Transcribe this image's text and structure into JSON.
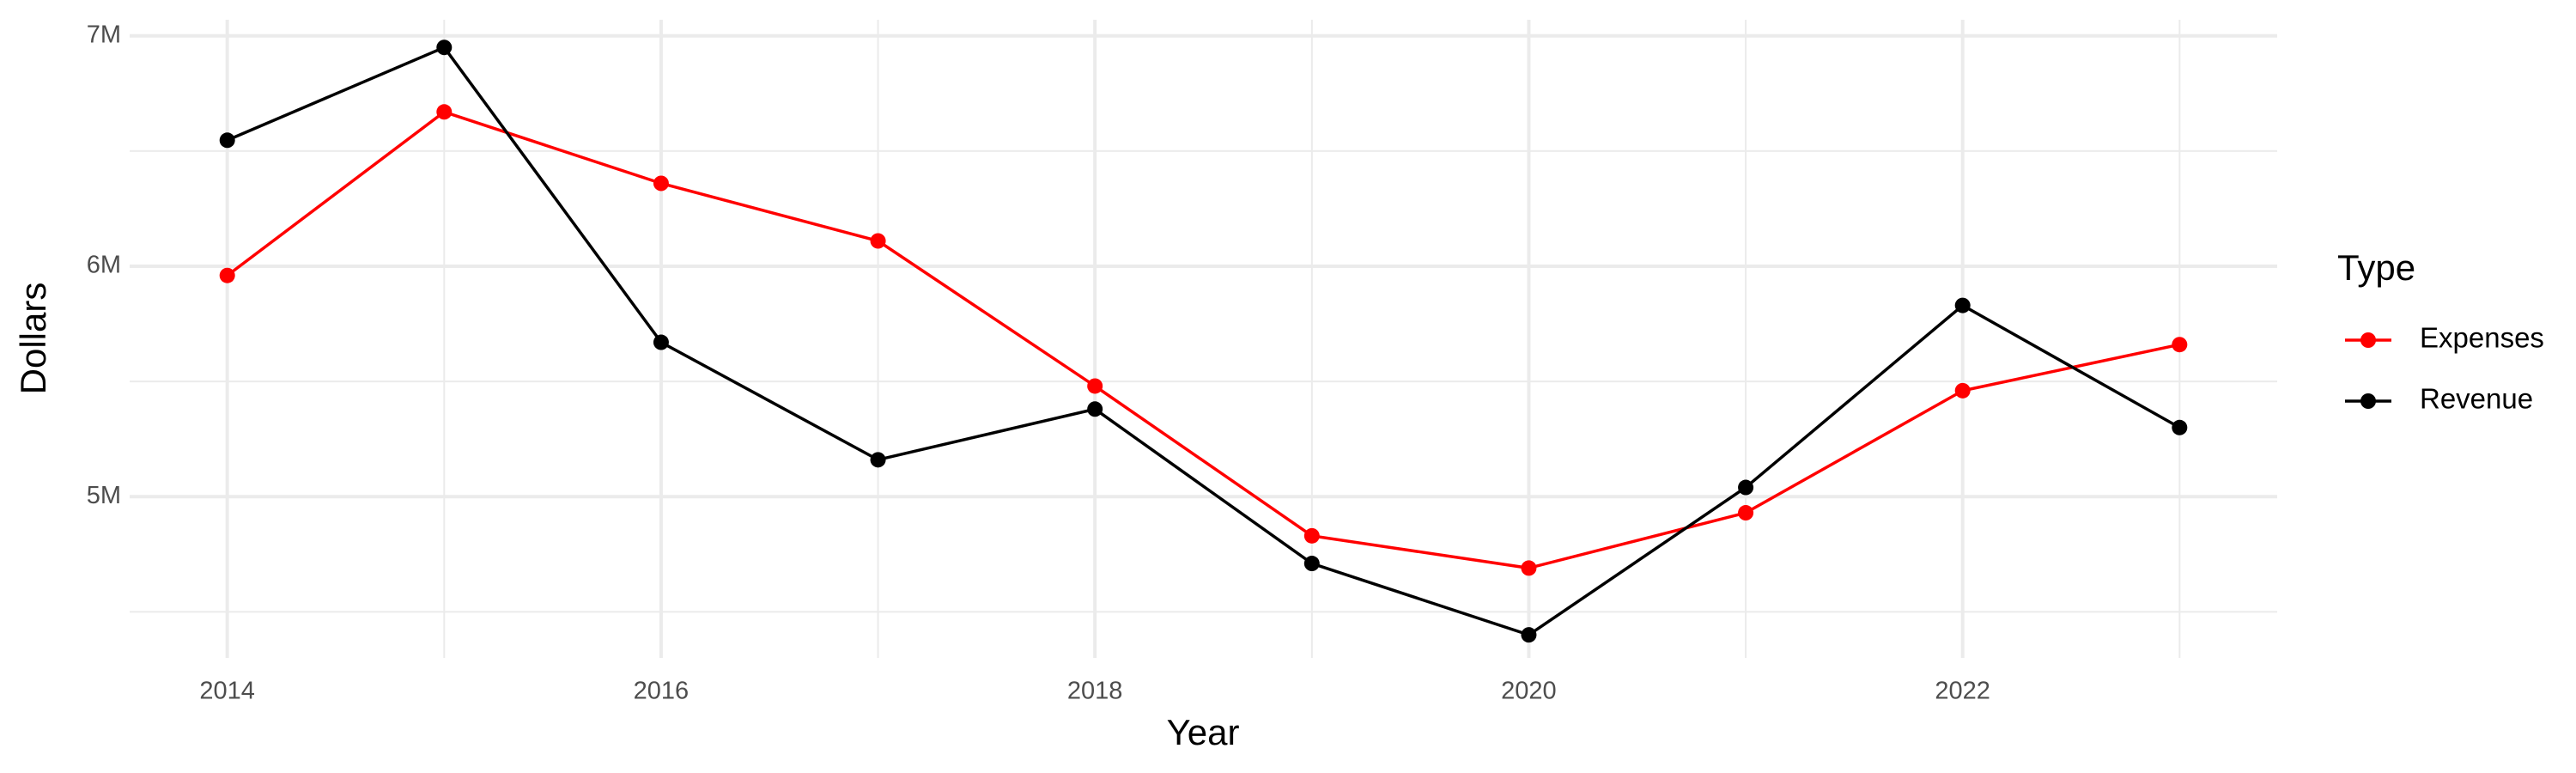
{
  "chart_data": {
    "type": "line",
    "x_label": "Year",
    "y_label": "Dollars",
    "x": [
      2014,
      2015,
      2016,
      2017,
      2018,
      2019,
      2020,
      2021,
      2022,
      2023
    ],
    "series": [
      {
        "name": "Expenses",
        "color": "#ff0000",
        "values": [
          5960000,
          6670000,
          6360000,
          6110000,
          5480000,
          4830000,
          4690000,
          4930000,
          5460000,
          5660000
        ]
      },
      {
        "name": "Revenue",
        "color": "#000000",
        "values": [
          6547000,
          6950000,
          5670000,
          5160000,
          5380000,
          4710000,
          4400000,
          5040000,
          5830000,
          5300000
        ]
      }
    ],
    "legend_title": "Type",
    "legend_position": "right",
    "xlim": [
      2013.55,
      2023.45
    ],
    "xticks": [
      2014,
      2016,
      2018,
      2020,
      2022
    ],
    "ylim": [
      4300000,
      7070000
    ],
    "yticks": [
      {
        "value": 5000000,
        "label": "5M"
      },
      {
        "value": 6000000,
        "label": "6M"
      },
      {
        "value": 7000000,
        "label": "7M"
      }
    ],
    "grid": true
  }
}
